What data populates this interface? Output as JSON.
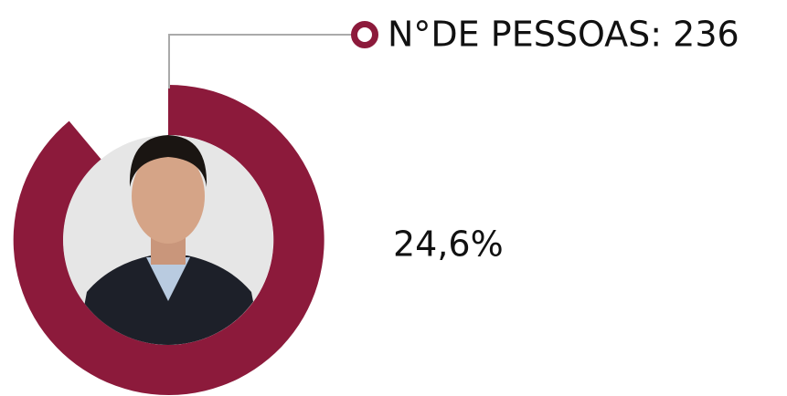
{
  "legend": {
    "label": "N°DE PESSOAS: 236"
  },
  "percent": "24,6%"
}
